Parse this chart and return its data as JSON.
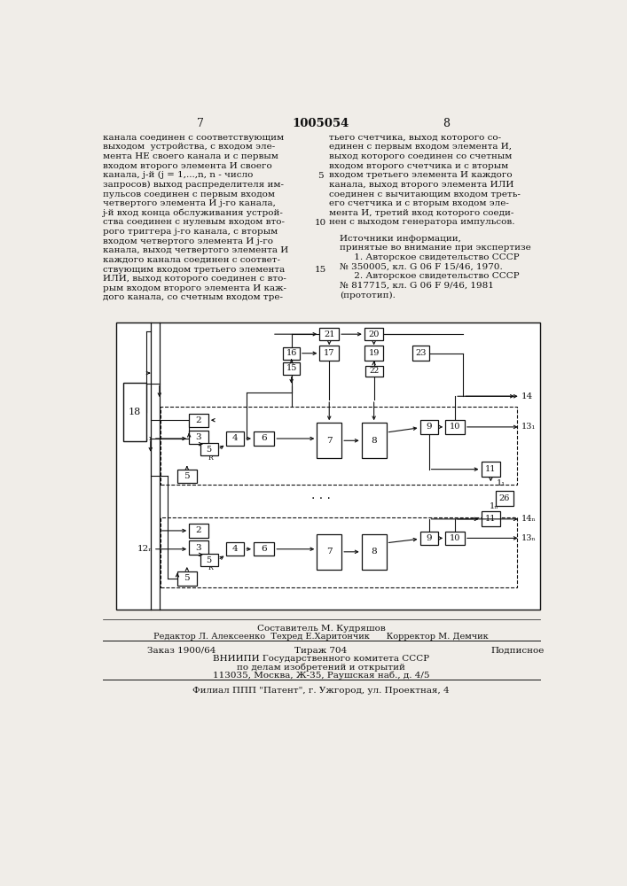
{
  "title": "1005054",
  "page_left": "7",
  "page_right": "8",
  "bg": "#f0ede8",
  "tc": "#111111",
  "text_left_col": [
    "канала соединен с соответствующим",
    "выходом  устройства, с входом эле-",
    "мента НЕ своего канала и с первым",
    "входом второго элемента И своего",
    "канала, j-й (j = 1,...,n, n - число",
    "запросов) выход распределителя им-",
    "пульсов соединен с первым входом",
    "четвертого элемента И j-го канала,",
    "j-й вход конца обслуживания устрой-",
    "ства соединен с нулевым входом вто-",
    "рого триггера j-го канала, с вторым",
    "входом четвертого элемента И j-го",
    "канала, выход четвертого элемента И",
    "каждого канала соединен с соответ-",
    "ствующим входом третьего элемента",
    "ИЛИ, выход которого соединен с вто-",
    "рым входом второго элемента И каж-",
    "дого канала, со счетным входом тре-"
  ],
  "text_right_col": [
    "тьего счетчика, выход которого со-",
    "единен с первым входом элемента И,",
    "выход которого соединен со счетным",
    "входом второго счетчика и с вторым",
    "входом третьего элемента И каждого",
    "канала, выход второго элемента ИЛИ",
    "соединен с вычитающим входом треть-",
    "его счетчика и с вторым входом эле-",
    "мента И, третий вход которого соеди-",
    "нен с выходом генератора импульсов."
  ],
  "sources_text": [
    "Источники информации,",
    "принятые во внимание при экспертизе",
    "     1. Авторское свидетельство СССР",
    "№ 350005, кл. G 06 F 15/46, 1970.",
    "     2. Авторское свидетельство СССР",
    "№ 817715, кл. G 06 F 9/46, 1981",
    "(прототип)."
  ],
  "footer_line1": "Составитель М. Кудряшов",
  "footer_line2": "Редактор Л. Алексеенко  Техред Е.Харитончик      Корректор М. Демчик",
  "footer_line3a": "Заказ 1900/64",
  "footer_line3b": "Тираж 704",
  "footer_line3c": "Подписное",
  "footer_line4": "ВНИИПИ Государственного комитета СССР",
  "footer_line5": "по делам изобретений и открытий",
  "footer_line6": "113035, Москва, Ж-35, Раушская наб., д. 4/5",
  "footer_line7": "Филиал ППП \"Патент\", г. Ужгород, ул. Проектная, 4"
}
